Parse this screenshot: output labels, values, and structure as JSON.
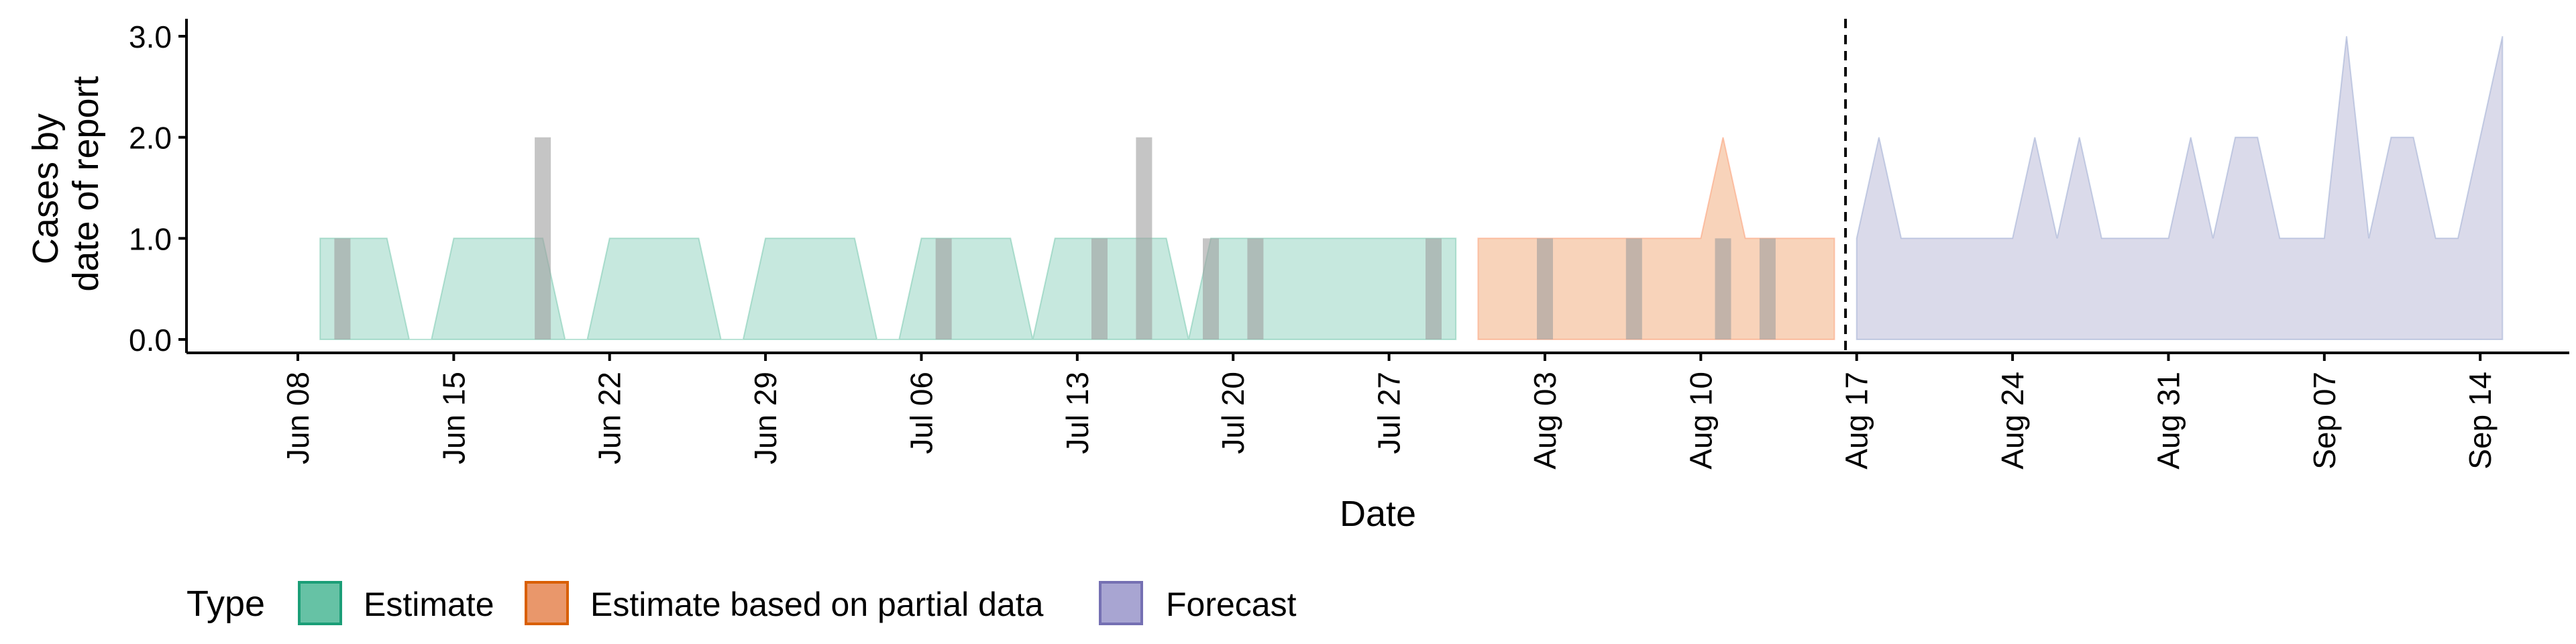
{
  "chart_data": {
    "type": "area",
    "title": "",
    "xlabel": "Date",
    "ylabel": [
      "Cases by",
      "date of report"
    ],
    "ylim": [
      0,
      3.0
    ],
    "yticks": [
      "0.0",
      "1.0",
      "2.0",
      "3.0"
    ],
    "xlim": [
      "2020-06-03",
      "2020-09-18"
    ],
    "xticks": [
      {
        "date": "2020-06-08",
        "label": "Jun 08"
      },
      {
        "date": "2020-06-15",
        "label": "Jun 15"
      },
      {
        "date": "2020-06-22",
        "label": "Jun 22"
      },
      {
        "date": "2020-06-29",
        "label": "Jun 29"
      },
      {
        "date": "2020-07-06",
        "label": "Jul 06"
      },
      {
        "date": "2020-07-13",
        "label": "Jul 13"
      },
      {
        "date": "2020-07-20",
        "label": "Jul 20"
      },
      {
        "date": "2020-07-27",
        "label": "Jul 27"
      },
      {
        "date": "2020-08-03",
        "label": "Aug 03"
      },
      {
        "date": "2020-08-10",
        "label": "Aug 10"
      },
      {
        "date": "2020-08-17",
        "label": "Aug 17"
      },
      {
        "date": "2020-08-24",
        "label": "Aug 24"
      },
      {
        "date": "2020-08-31",
        "label": "Aug 31"
      },
      {
        "date": "2020-09-07",
        "label": "Sep 07"
      },
      {
        "date": "2020-09-14",
        "label": "Sep 14"
      }
    ],
    "forecast_date": "2020-08-16",
    "grid": false,
    "legend": {
      "title": "Type",
      "position": "bottom"
    },
    "series": [
      {
        "name": "Estimate",
        "color": "#66C2A5",
        "fill": "#C6E8DE",
        "points": [
          [
            "2020-06-09",
            1
          ],
          [
            "2020-06-10",
            1
          ],
          [
            "2020-06-11",
            1
          ],
          [
            "2020-06-12",
            1
          ],
          [
            "2020-06-13",
            0
          ],
          [
            "2020-06-14",
            0
          ],
          [
            "2020-06-15",
            1
          ],
          [
            "2020-06-16",
            1
          ],
          [
            "2020-06-17",
            1
          ],
          [
            "2020-06-18",
            1
          ],
          [
            "2020-06-19",
            1
          ],
          [
            "2020-06-20",
            0
          ],
          [
            "2020-06-21",
            0
          ],
          [
            "2020-06-22",
            1
          ],
          [
            "2020-06-23",
            1
          ],
          [
            "2020-06-24",
            1
          ],
          [
            "2020-06-25",
            1
          ],
          [
            "2020-06-26",
            1
          ],
          [
            "2020-06-27",
            0
          ],
          [
            "2020-06-28",
            0
          ],
          [
            "2020-06-29",
            1
          ],
          [
            "2020-06-30",
            1
          ],
          [
            "2020-07-01",
            1
          ],
          [
            "2020-07-02",
            1
          ],
          [
            "2020-07-03",
            1
          ],
          [
            "2020-07-04",
            0
          ],
          [
            "2020-07-05",
            0
          ],
          [
            "2020-07-06",
            1
          ],
          [
            "2020-07-07",
            1
          ],
          [
            "2020-07-08",
            1
          ],
          [
            "2020-07-09",
            1
          ],
          [
            "2020-07-10",
            1
          ],
          [
            "2020-07-11",
            0
          ],
          [
            "2020-07-12",
            1
          ],
          [
            "2020-07-13",
            1
          ],
          [
            "2020-07-14",
            1
          ],
          [
            "2020-07-15",
            1
          ],
          [
            "2020-07-16",
            1
          ],
          [
            "2020-07-17",
            1
          ],
          [
            "2020-07-18",
            0
          ],
          [
            "2020-07-19",
            1
          ],
          [
            "2020-07-20",
            1
          ],
          [
            "2020-07-21",
            1
          ],
          [
            "2020-07-22",
            1
          ],
          [
            "2020-07-23",
            1
          ],
          [
            "2020-07-24",
            1
          ],
          [
            "2020-07-25",
            1
          ],
          [
            "2020-07-26",
            1
          ],
          [
            "2020-07-27",
            1
          ],
          [
            "2020-07-28",
            1
          ],
          [
            "2020-07-29",
            1
          ],
          [
            "2020-07-30",
            1
          ]
        ]
      },
      {
        "name": "Estimate based on partial data",
        "color": "#FC8D62",
        "fill": "#F8D3BA",
        "points": [
          [
            "2020-07-31",
            1
          ],
          [
            "2020-08-01",
            1
          ],
          [
            "2020-08-02",
            1
          ],
          [
            "2020-08-03",
            1
          ],
          [
            "2020-08-04",
            1
          ],
          [
            "2020-08-05",
            1
          ],
          [
            "2020-08-06",
            1
          ],
          [
            "2020-08-07",
            1
          ],
          [
            "2020-08-08",
            1
          ],
          [
            "2020-08-09",
            1
          ],
          [
            "2020-08-10",
            1
          ],
          [
            "2020-08-11",
            2
          ],
          [
            "2020-08-12",
            1
          ],
          [
            "2020-08-13",
            1
          ],
          [
            "2020-08-14",
            1
          ],
          [
            "2020-08-15",
            1
          ],
          [
            "2020-08-16",
            1
          ]
        ]
      },
      {
        "name": "Forecast",
        "color": "#8DA0CB",
        "fill": "#DADAEA",
        "points": [
          [
            "2020-08-17",
            1
          ],
          [
            "2020-08-18",
            2
          ],
          [
            "2020-08-19",
            1
          ],
          [
            "2020-08-20",
            1
          ],
          [
            "2020-08-21",
            1
          ],
          [
            "2020-08-22",
            1
          ],
          [
            "2020-08-23",
            1
          ],
          [
            "2020-08-24",
            1
          ],
          [
            "2020-08-25",
            2
          ],
          [
            "2020-08-26",
            1
          ],
          [
            "2020-08-27",
            2
          ],
          [
            "2020-08-28",
            1
          ],
          [
            "2020-08-29",
            1
          ],
          [
            "2020-08-30",
            1
          ],
          [
            "2020-08-31",
            1
          ],
          [
            "2020-09-01",
            2
          ],
          [
            "2020-09-02",
            1
          ],
          [
            "2020-09-03",
            2
          ],
          [
            "2020-09-04",
            2
          ],
          [
            "2020-09-05",
            1
          ],
          [
            "2020-09-06",
            1
          ],
          [
            "2020-09-07",
            1
          ],
          [
            "2020-09-08",
            3
          ],
          [
            "2020-09-09",
            1
          ],
          [
            "2020-09-10",
            2
          ],
          [
            "2020-09-11",
            2
          ],
          [
            "2020-09-12",
            1
          ],
          [
            "2020-09-13",
            1
          ],
          [
            "2020-09-14",
            2
          ],
          [
            "2020-09-15",
            3
          ]
        ]
      }
    ],
    "reported_cases": [
      {
        "date": "2020-06-10",
        "value": 1
      },
      {
        "date": "2020-06-19",
        "value": 2
      },
      {
        "date": "2020-07-07",
        "value": 1
      },
      {
        "date": "2020-07-14",
        "value": 1
      },
      {
        "date": "2020-07-16",
        "value": 2
      },
      {
        "date": "2020-07-19",
        "value": 1
      },
      {
        "date": "2020-07-21",
        "value": 1
      },
      {
        "date": "2020-07-29",
        "value": 1
      },
      {
        "date": "2020-08-03",
        "value": 1
      },
      {
        "date": "2020-08-07",
        "value": 1
      },
      {
        "date": "2020-08-11",
        "value": 1
      },
      {
        "date": "2020-08-13",
        "value": 1
      }
    ],
    "reported_cases_color": "#9E9E9E"
  }
}
